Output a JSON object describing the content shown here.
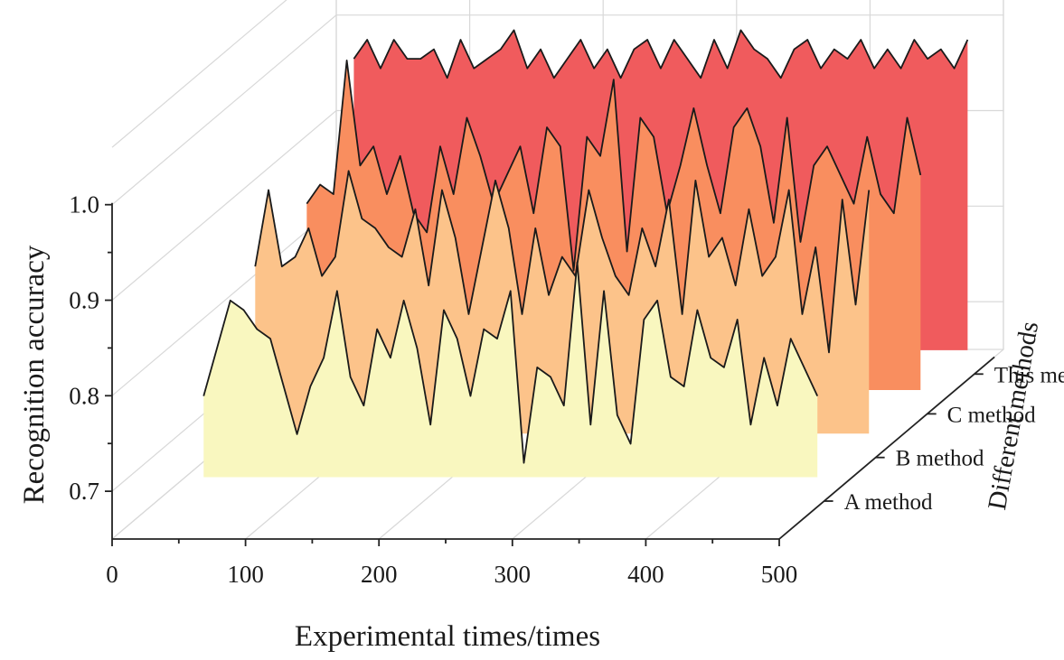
{
  "chart_data": {
    "type": "area",
    "title": "",
    "xlabel": "Experimental times/times",
    "ylabel": "Recognition accuracy",
    "depth_label": "Different methods",
    "xlim": [
      0,
      500
    ],
    "ylim": [
      0.65,
      1.0
    ],
    "x_ticks": [
      "0",
      "100",
      "200",
      "300",
      "400",
      "500"
    ],
    "y_ticks": [
      "0.7",
      "0.8",
      "0.9",
      "1.0"
    ],
    "series_order_front_to_back": [
      "A method",
      "B method",
      "C method",
      "This method"
    ],
    "x": [
      35,
      45,
      55,
      65,
      75,
      85,
      95,
      105,
      115,
      125,
      135,
      145,
      155,
      165,
      175,
      185,
      195,
      205,
      215,
      225,
      235,
      245,
      255,
      265,
      275,
      285,
      295,
      305,
      315,
      325,
      335,
      345,
      355,
      365,
      375,
      385,
      395,
      405,
      415,
      425,
      435,
      445,
      455,
      465,
      475,
      485,
      495
    ],
    "series": [
      {
        "name": "A method",
        "color": "#f9f7bf",
        "values": [
          0.76,
          0.81,
          0.86,
          0.85,
          0.83,
          0.82,
          0.77,
          0.72,
          0.77,
          0.8,
          0.87,
          0.78,
          0.75,
          0.83,
          0.8,
          0.86,
          0.81,
          0.73,
          0.85,
          0.82,
          0.76,
          0.83,
          0.82,
          0.87,
          0.69,
          0.79,
          0.78,
          0.75,
          0.9,
          0.73,
          0.87,
          0.74,
          0.71,
          0.84,
          0.86,
          0.78,
          0.77,
          0.85,
          0.8,
          0.79,
          0.84,
          0.73,
          0.8,
          0.75,
          0.82,
          0.79,
          0.76
        ]
      },
      {
        "name": "B method",
        "color": "#fcc38a",
        "values": [
          0.85,
          0.93,
          0.85,
          0.86,
          0.89,
          0.84,
          0.86,
          0.95,
          0.9,
          0.89,
          0.87,
          0.86,
          0.91,
          0.83,
          0.93,
          0.88,
          0.8,
          0.87,
          0.94,
          0.89,
          0.8,
          0.89,
          0.82,
          0.86,
          0.84,
          0.93,
          0.88,
          0.84,
          0.82,
          0.89,
          0.85,
          0.92,
          0.8,
          0.94,
          0.86,
          0.88,
          0.83,
          0.91,
          0.84,
          0.86,
          0.93,
          0.8,
          0.87,
          0.76,
          0.92,
          0.81,
          0.93
        ]
      },
      {
        "name": "C method",
        "color": "#f98e5f",
        "values": [
          0.87,
          0.89,
          0.88,
          1.02,
          0.91,
          0.93,
          0.88,
          0.92,
          0.86,
          0.84,
          0.93,
          0.88,
          0.96,
          0.92,
          0.87,
          0.9,
          0.93,
          0.86,
          0.95,
          0.93,
          0.8,
          0.94,
          0.92,
          1.0,
          0.82,
          0.96,
          0.94,
          0.86,
          0.91,
          0.97,
          0.91,
          0.86,
          0.95,
          0.97,
          0.93,
          0.85,
          0.96,
          0.83,
          0.91,
          0.93,
          0.9,
          0.87,
          0.94,
          0.88,
          0.86,
          0.96,
          0.9
        ]
      },
      {
        "name": "This method",
        "color": "#f05b5d",
        "values": [
          0.98,
          1.0,
          0.97,
          1.0,
          0.98,
          0.98,
          0.99,
          0.96,
          1.0,
          0.97,
          0.98,
          0.99,
          1.01,
          0.97,
          0.99,
          0.96,
          0.98,
          1.0,
          0.97,
          0.99,
          0.96,
          0.99,
          1.0,
          0.97,
          1.0,
          0.98,
          0.96,
          1.0,
          0.97,
          1.01,
          0.99,
          0.98,
          0.96,
          0.99,
          1.0,
          0.97,
          0.99,
          0.98,
          1.0,
          0.97,
          0.99,
          0.97,
          1.0,
          0.98,
          0.99,
          0.97,
          1.0
        ]
      }
    ]
  }
}
